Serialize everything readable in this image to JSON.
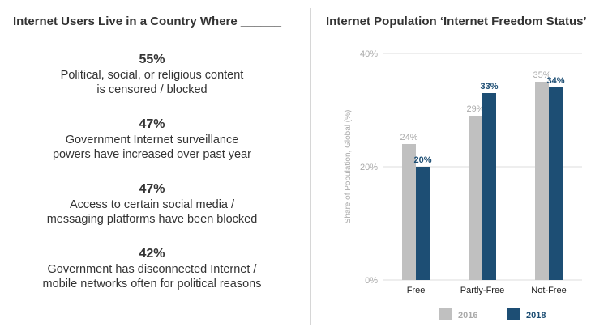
{
  "left": {
    "title": "Internet Users Live in a Country Where ______",
    "stats": [
      {
        "value": "55%",
        "line1": "Political, social, or religious content",
        "line2": "is censored / blocked"
      },
      {
        "value": "47%",
        "line1": "Government Internet surveillance",
        "line2": "powers have increased over past year"
      },
      {
        "value": "47%",
        "line1": "Access to certain social media /",
        "line2": "messaging platforms have been blocked"
      },
      {
        "value": "42%",
        "line1": "Government has disconnected Internet /",
        "line2": "mobile networks often for political reasons"
      }
    ]
  },
  "chart_data": {
    "type": "bar",
    "title": "Internet Population ‘Internet Freedom Status’",
    "categories": [
      "Free",
      "Partly-Free",
      "Not-Free"
    ],
    "series": [
      {
        "name": "2016",
        "values": [
          24,
          29,
          35
        ],
        "labels": [
          "24%",
          "29%",
          "35%"
        ],
        "color": "#c0c0c0"
      },
      {
        "name": "2018",
        "values": [
          20,
          33,
          34
        ],
        "labels": [
          "20%",
          "33%",
          "34%"
        ],
        "color": "#1d4e74"
      }
    ],
    "ylabel": "Share of Population, Global (%)",
    "ylim": [
      0,
      40
    ],
    "yticks": [
      0,
      20,
      40
    ],
    "ytick_labels": [
      "0%",
      "20%",
      "40%"
    ],
    "grid": true,
    "legend": "bottom"
  }
}
